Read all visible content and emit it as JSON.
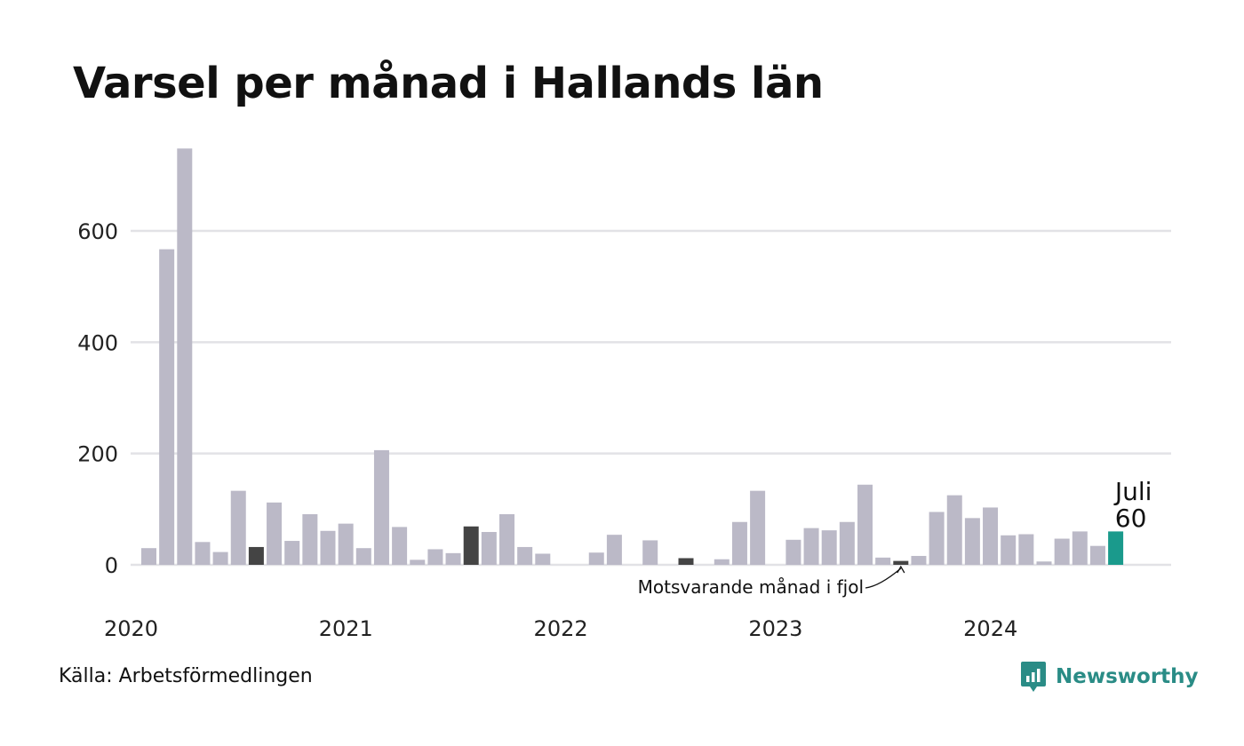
{
  "title": "Varsel per månad i Hallands län",
  "source": "Källa: Arbetsförmedlingen",
  "brand": {
    "name": "Newsworthy",
    "icon": "newsworthy-logo-icon"
  },
  "colors": {
    "bar": "#bbb9c7",
    "highlight_previous": "#444444",
    "current": "#1a9a8c",
    "grid": "#e2e2e6",
    "brand": "#2a8c86"
  },
  "chart_data": {
    "type": "bar",
    "title": "Varsel per månad i Hallands län",
    "xlabel": "",
    "ylabel": "",
    "ylim": [
      0,
      750
    ],
    "yticks": [
      0,
      200,
      400,
      600
    ],
    "grid": true,
    "x_tick_labels": [
      "2020",
      "2021",
      "2022",
      "2023",
      "2024"
    ],
    "categories": [
      "2020-01",
      "2020-02",
      "2020-03",
      "2020-04",
      "2020-05",
      "2020-06",
      "2020-07",
      "2020-08",
      "2020-09",
      "2020-10",
      "2020-11",
      "2020-12",
      "2021-01",
      "2021-02",
      "2021-03",
      "2021-04",
      "2021-05",
      "2021-06",
      "2021-07",
      "2021-08",
      "2021-09",
      "2021-10",
      "2021-11",
      "2021-12",
      "2022-01",
      "2022-02",
      "2022-03",
      "2022-04",
      "2022-05",
      "2022-06",
      "2022-07",
      "2022-08",
      "2022-09",
      "2022-10",
      "2022-11",
      "2022-12",
      "2023-01",
      "2023-02",
      "2023-03",
      "2023-04",
      "2023-05",
      "2023-06",
      "2023-07",
      "2023-08",
      "2023-09",
      "2023-10",
      "2023-11",
      "2023-12",
      "2024-01",
      "2024-02",
      "2024-03",
      "2024-04",
      "2024-05",
      "2024-06",
      "2024-07"
    ],
    "values": [
      30,
      567,
      748,
      41,
      23,
      133,
      32,
      112,
      43,
      91,
      61,
      74,
      30,
      206,
      68,
      9,
      28,
      21,
      69,
      59,
      91,
      32,
      20,
      0,
      0,
      22,
      54,
      0,
      44,
      0,
      12,
      0,
      10,
      77,
      133,
      0,
      45,
      66,
      62,
      77,
      144,
      13,
      7,
      16,
      95,
      125,
      84,
      103,
      53,
      55,
      6,
      47,
      60,
      34,
      60
    ],
    "highlighted_previous_same_month": [
      "2020-07",
      "2021-07",
      "2022-07",
      "2023-07"
    ],
    "current": {
      "category": "2024-07",
      "label": "Juli",
      "value": 60
    },
    "annotation": {
      "text": "Motsvarande månad i fjol",
      "target": "2023-07"
    }
  }
}
